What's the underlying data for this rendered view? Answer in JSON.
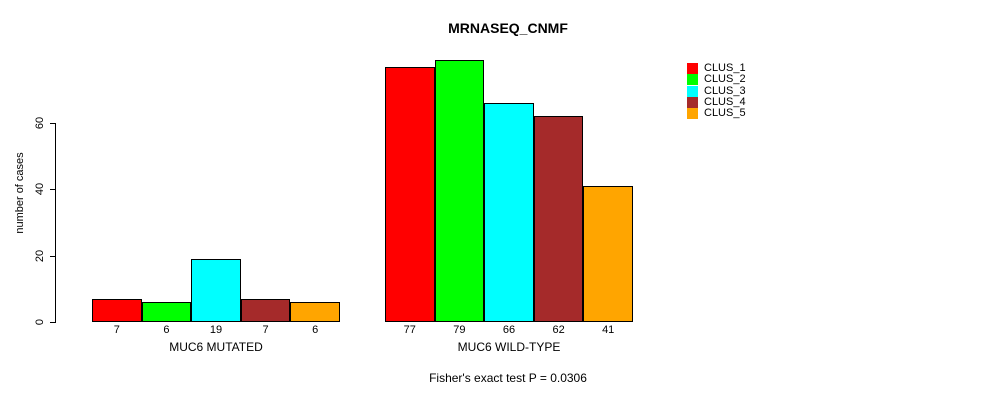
{
  "chart_data": {
    "type": "bar",
    "title": "MRNASEQ_CNMF",
    "ylabel": "number of cases",
    "xlabel": "",
    "categories": [
      "MUC6 MUTATED",
      "MUC6 WILD-TYPE"
    ],
    "series": [
      {
        "name": "CLUS_1",
        "color": "#FF0000",
        "values": [
          7,
          77
        ]
      },
      {
        "name": "CLUS_2",
        "color": "#00FF00",
        "values": [
          6,
          79
        ]
      },
      {
        "name": "CLUS_3",
        "color": "#00FFFF",
        "values": [
          19,
          66
        ]
      },
      {
        "name": "CLUS_4",
        "color": "#A52A2A",
        "values": [
          7,
          62
        ]
      },
      {
        "name": "CLUS_5",
        "color": "#FFA500",
        "values": [
          6,
          41
        ]
      }
    ],
    "y_ticks": [
      0,
      20,
      40,
      60
    ],
    "ylim": [
      0,
      80
    ],
    "grid": false,
    "legend_position": "top-right",
    "bar_border_color": "#000000",
    "value_labels_shown": true,
    "footnote": "Fisher's exact test P = 0.0306"
  }
}
